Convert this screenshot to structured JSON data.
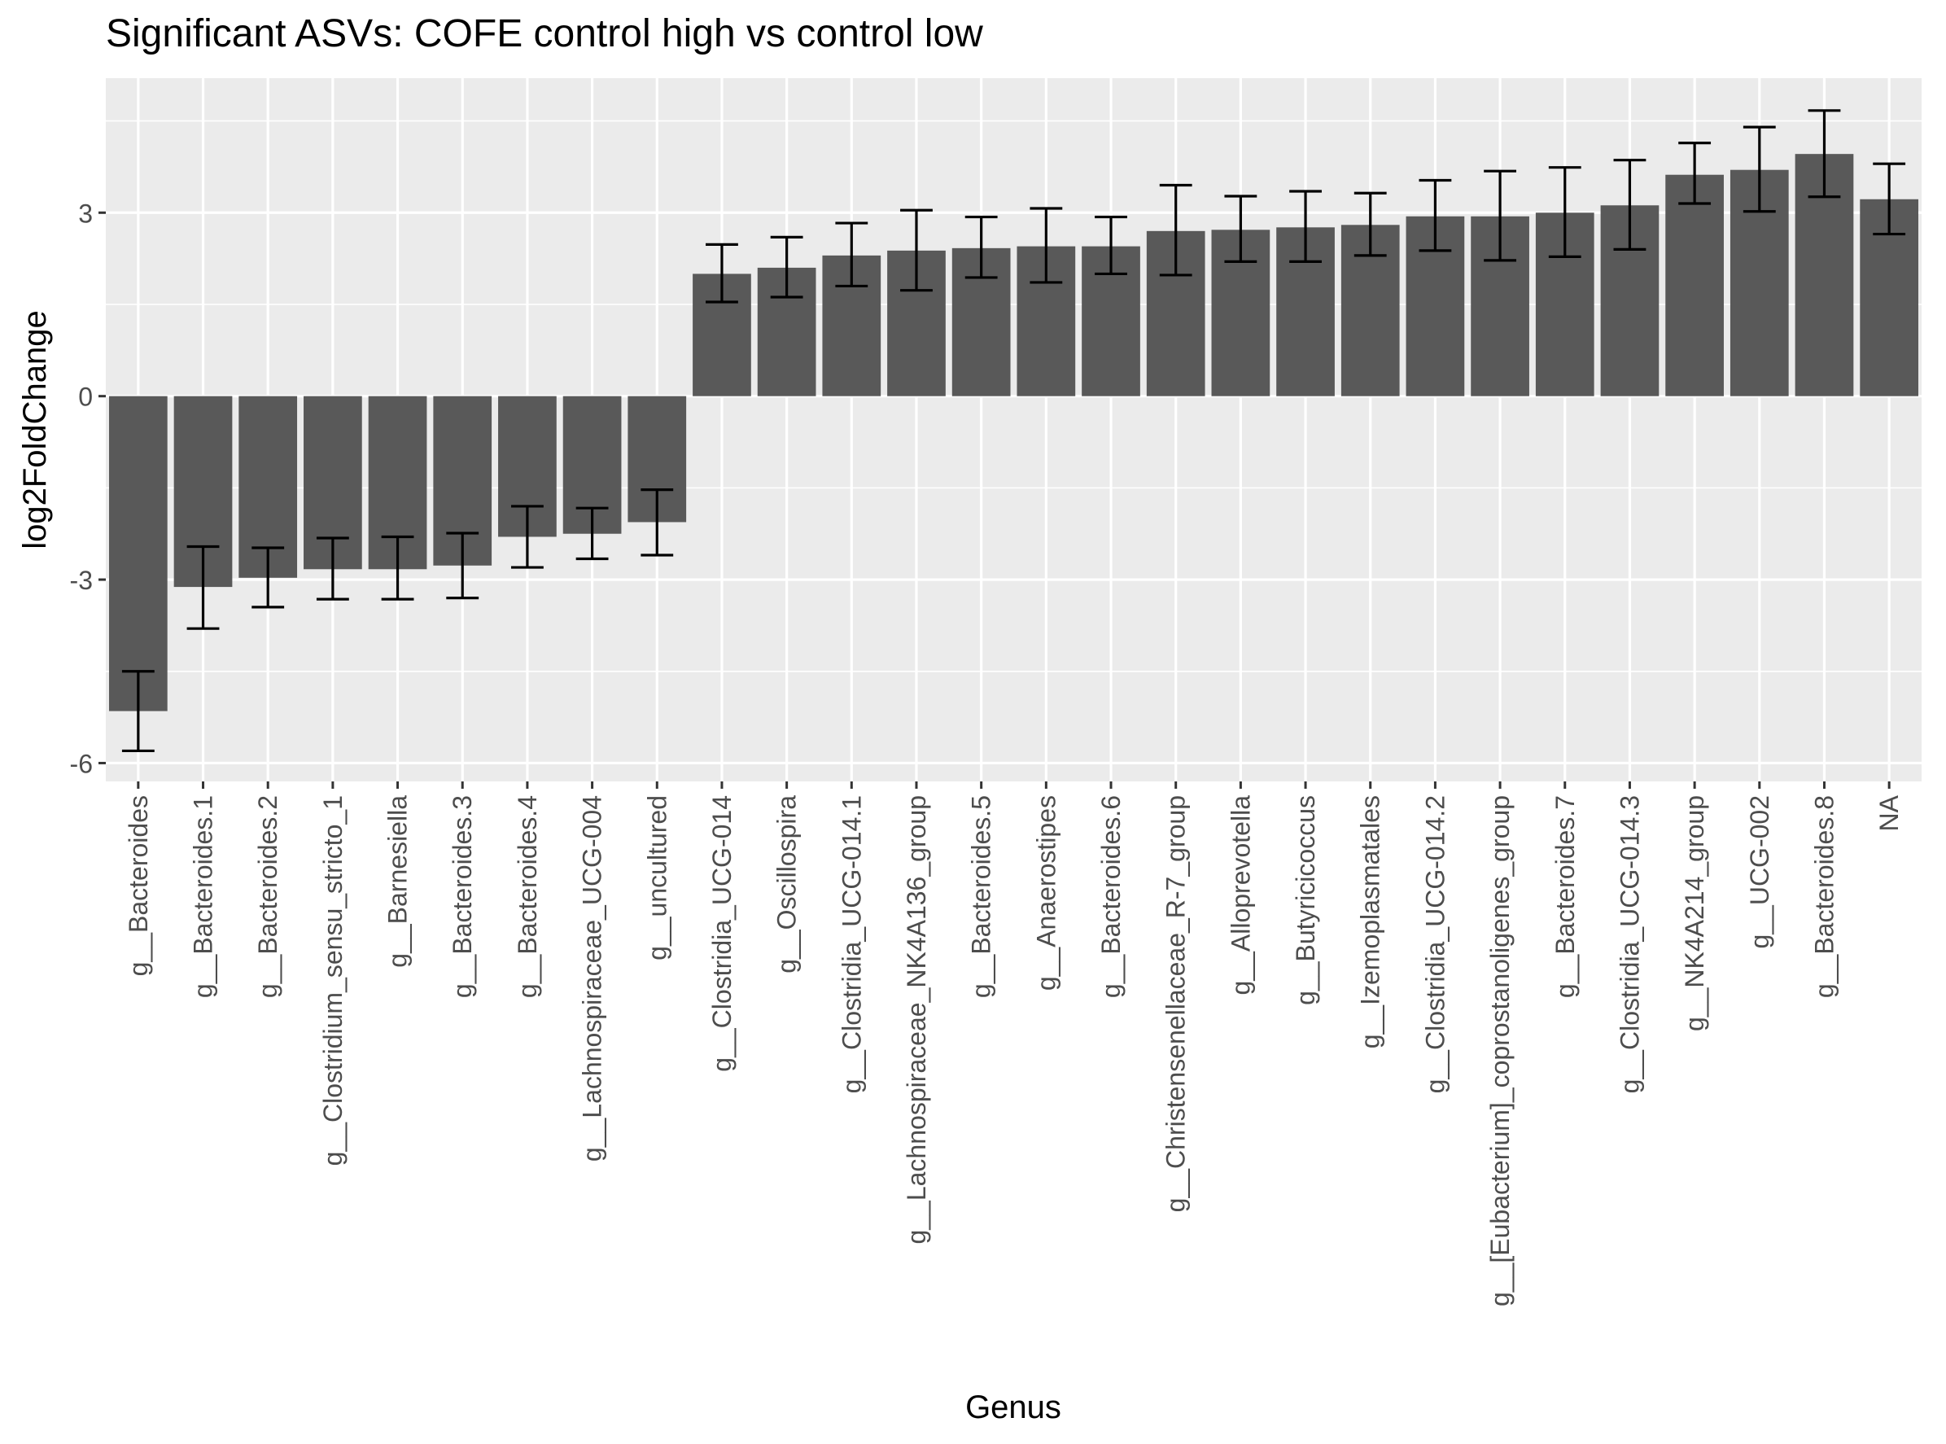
{
  "chart_data": {
    "type": "bar",
    "title": "Significant ASVs: COFE control high vs control low",
    "xlabel": "Genus",
    "ylabel": "log2FoldChange",
    "ylim": [
      -6.3,
      5.2
    ],
    "yticks": [
      -6,
      -3,
      0,
      3
    ],
    "ytick_labels": [
      "-6",
      "-3",
      "0",
      "3"
    ],
    "grid": true,
    "bar_color": "#595959",
    "panel_color": "#ebebeb",
    "categories": [
      "g__Bacteroides",
      "g__Bacteroides.1",
      "g__Bacteroides.2",
      "g__Clostridium_sensu_stricto_1",
      "g__Barnesiella",
      "g__Bacteroides.3",
      "g__Bacteroides.4",
      "g__Lachnospiraceae_UCG-004",
      "g__uncultured",
      "g__Clostridia_UCG-014",
      "g__Oscillospira",
      "g__Clostridia_UCG-014.1",
      "g__Lachnospiraceae_NK4A136_group",
      "g__Bacteroides.5",
      "g__Anaerostipes",
      "g__Bacteroides.6",
      "g__Christensenellaceae_R-7_group",
      "g__Alloprevotella",
      "g__Butyricicoccus",
      "g__Izemoplasmatales",
      "g__Clostridia_UCG-014.2",
      "g__[Eubacterium]_coprostanoligenes_group",
      "g__Bacteroides.7",
      "g__Clostridia_UCG-014.3",
      "g__NK4A214_group",
      "g__UCG-002",
      "g__Bacteroides.8",
      "NA"
    ],
    "values": [
      -5.15,
      -3.12,
      -2.97,
      -2.83,
      -2.83,
      -2.77,
      -2.3,
      -2.25,
      -2.06,
      2.0,
      2.1,
      2.3,
      2.38,
      2.42,
      2.45,
      2.45,
      2.7,
      2.72,
      2.76,
      2.8,
      2.94,
      2.94,
      3.0,
      3.12,
      3.62,
      3.7,
      3.96,
      3.22
    ],
    "error_low": [
      -5.8,
      -3.8,
      -3.45,
      -3.32,
      -3.32,
      -3.3,
      -2.8,
      -2.66,
      -2.6,
      1.54,
      1.62,
      1.8,
      1.73,
      1.94,
      1.86,
      2.0,
      1.98,
      2.2,
      2.2,
      2.3,
      2.38,
      2.22,
      2.28,
      2.4,
      3.15,
      3.02,
      3.26,
      2.65
    ],
    "error_high": [
      -4.5,
      -2.46,
      -2.48,
      -2.32,
      -2.3,
      -2.24,
      -1.8,
      -1.83,
      -1.53,
      2.48,
      2.6,
      2.83,
      3.04,
      2.93,
      3.07,
      2.93,
      3.45,
      3.27,
      3.35,
      3.32,
      3.53,
      3.68,
      3.74,
      3.86,
      4.14,
      4.4,
      4.67,
      3.8
    ]
  }
}
